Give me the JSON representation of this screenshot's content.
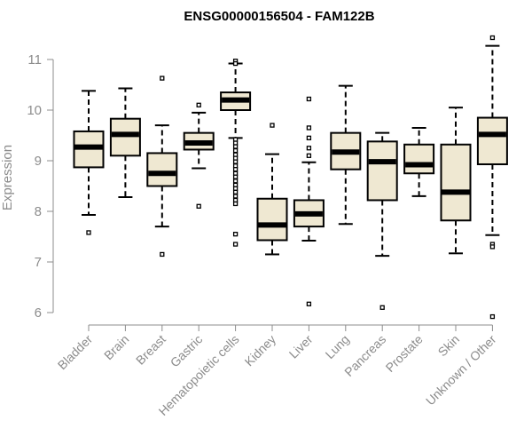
{
  "chart_data": {
    "type": "box",
    "title": "ENSG00000156504 - FAM122B",
    "xlabel": "",
    "ylabel": "Expression",
    "ylim": [
      5.8,
      11.2
    ],
    "yticks": [
      "6",
      "7",
      "8",
      "9",
      "10",
      "11"
    ],
    "grid": false,
    "legend": "none",
    "box_fill": "#efe8d2",
    "categories": [
      "Bladder",
      "Brain",
      "Breast",
      "Gastric",
      "Hematopoietic cells",
      "Kidney",
      "Liver",
      "Lung",
      "Pancreas",
      "Prostate",
      "Skin",
      "Unknown / Other"
    ],
    "boxes": [
      {
        "whisker_low": 7.93,
        "q1": 8.87,
        "median": 9.27,
        "q3": 9.58,
        "whisker_high": 10.38,
        "outliers": [
          7.58
        ]
      },
      {
        "whisker_low": 8.28,
        "q1": 9.1,
        "median": 9.52,
        "q3": 9.83,
        "whisker_high": 10.43,
        "outliers": []
      },
      {
        "whisker_low": 7.7,
        "q1": 8.5,
        "median": 8.75,
        "q3": 9.15,
        "whisker_high": 9.7,
        "outliers": [
          10.63,
          7.15
        ]
      },
      {
        "whisker_low": 8.85,
        "q1": 9.22,
        "median": 9.35,
        "q3": 9.55,
        "whisker_high": 9.95,
        "outliers": [
          10.1,
          8.1
        ]
      },
      {
        "whisker_low": 9.45,
        "q1": 10.0,
        "median": 10.2,
        "q3": 10.35,
        "whisker_high": 10.92,
        "outliers": [
          10.97,
          10.92,
          9.42,
          9.35,
          9.28,
          9.2,
          9.12,
          9.05,
          8.98,
          8.9,
          8.83,
          8.75,
          8.68,
          8.6,
          8.52,
          8.45,
          8.38,
          8.3,
          8.22,
          8.15,
          7.55,
          7.35
        ]
      },
      {
        "whisker_low": 7.15,
        "q1": 7.43,
        "median": 7.73,
        "q3": 8.25,
        "whisker_high": 9.13,
        "outliers": [
          9.7
        ]
      },
      {
        "whisker_low": 7.42,
        "q1": 7.7,
        "median": 7.95,
        "q3": 8.22,
        "whisker_high": 8.97,
        "outliers": [
          10.22,
          9.65,
          9.45,
          9.25,
          9.1,
          6.17
        ]
      },
      {
        "whisker_low": 7.75,
        "q1": 8.83,
        "median": 9.17,
        "q3": 9.55,
        "whisker_high": 10.48,
        "outliers": []
      },
      {
        "whisker_low": 7.12,
        "q1": 8.22,
        "median": 8.98,
        "q3": 9.38,
        "whisker_high": 9.55,
        "outliers": [
          6.1
        ]
      },
      {
        "whisker_low": 8.3,
        "q1": 8.75,
        "median": 8.92,
        "q3": 9.32,
        "whisker_high": 9.65,
        "outliers": []
      },
      {
        "whisker_low": 7.17,
        "q1": 7.82,
        "median": 8.38,
        "q3": 9.32,
        "whisker_high": 10.05,
        "outliers": []
      },
      {
        "whisker_low": 7.53,
        "q1": 8.93,
        "median": 9.52,
        "q3": 9.85,
        "whisker_high": 11.27,
        "outliers": [
          11.43,
          7.35,
          7.3,
          5.92
        ]
      }
    ]
  }
}
